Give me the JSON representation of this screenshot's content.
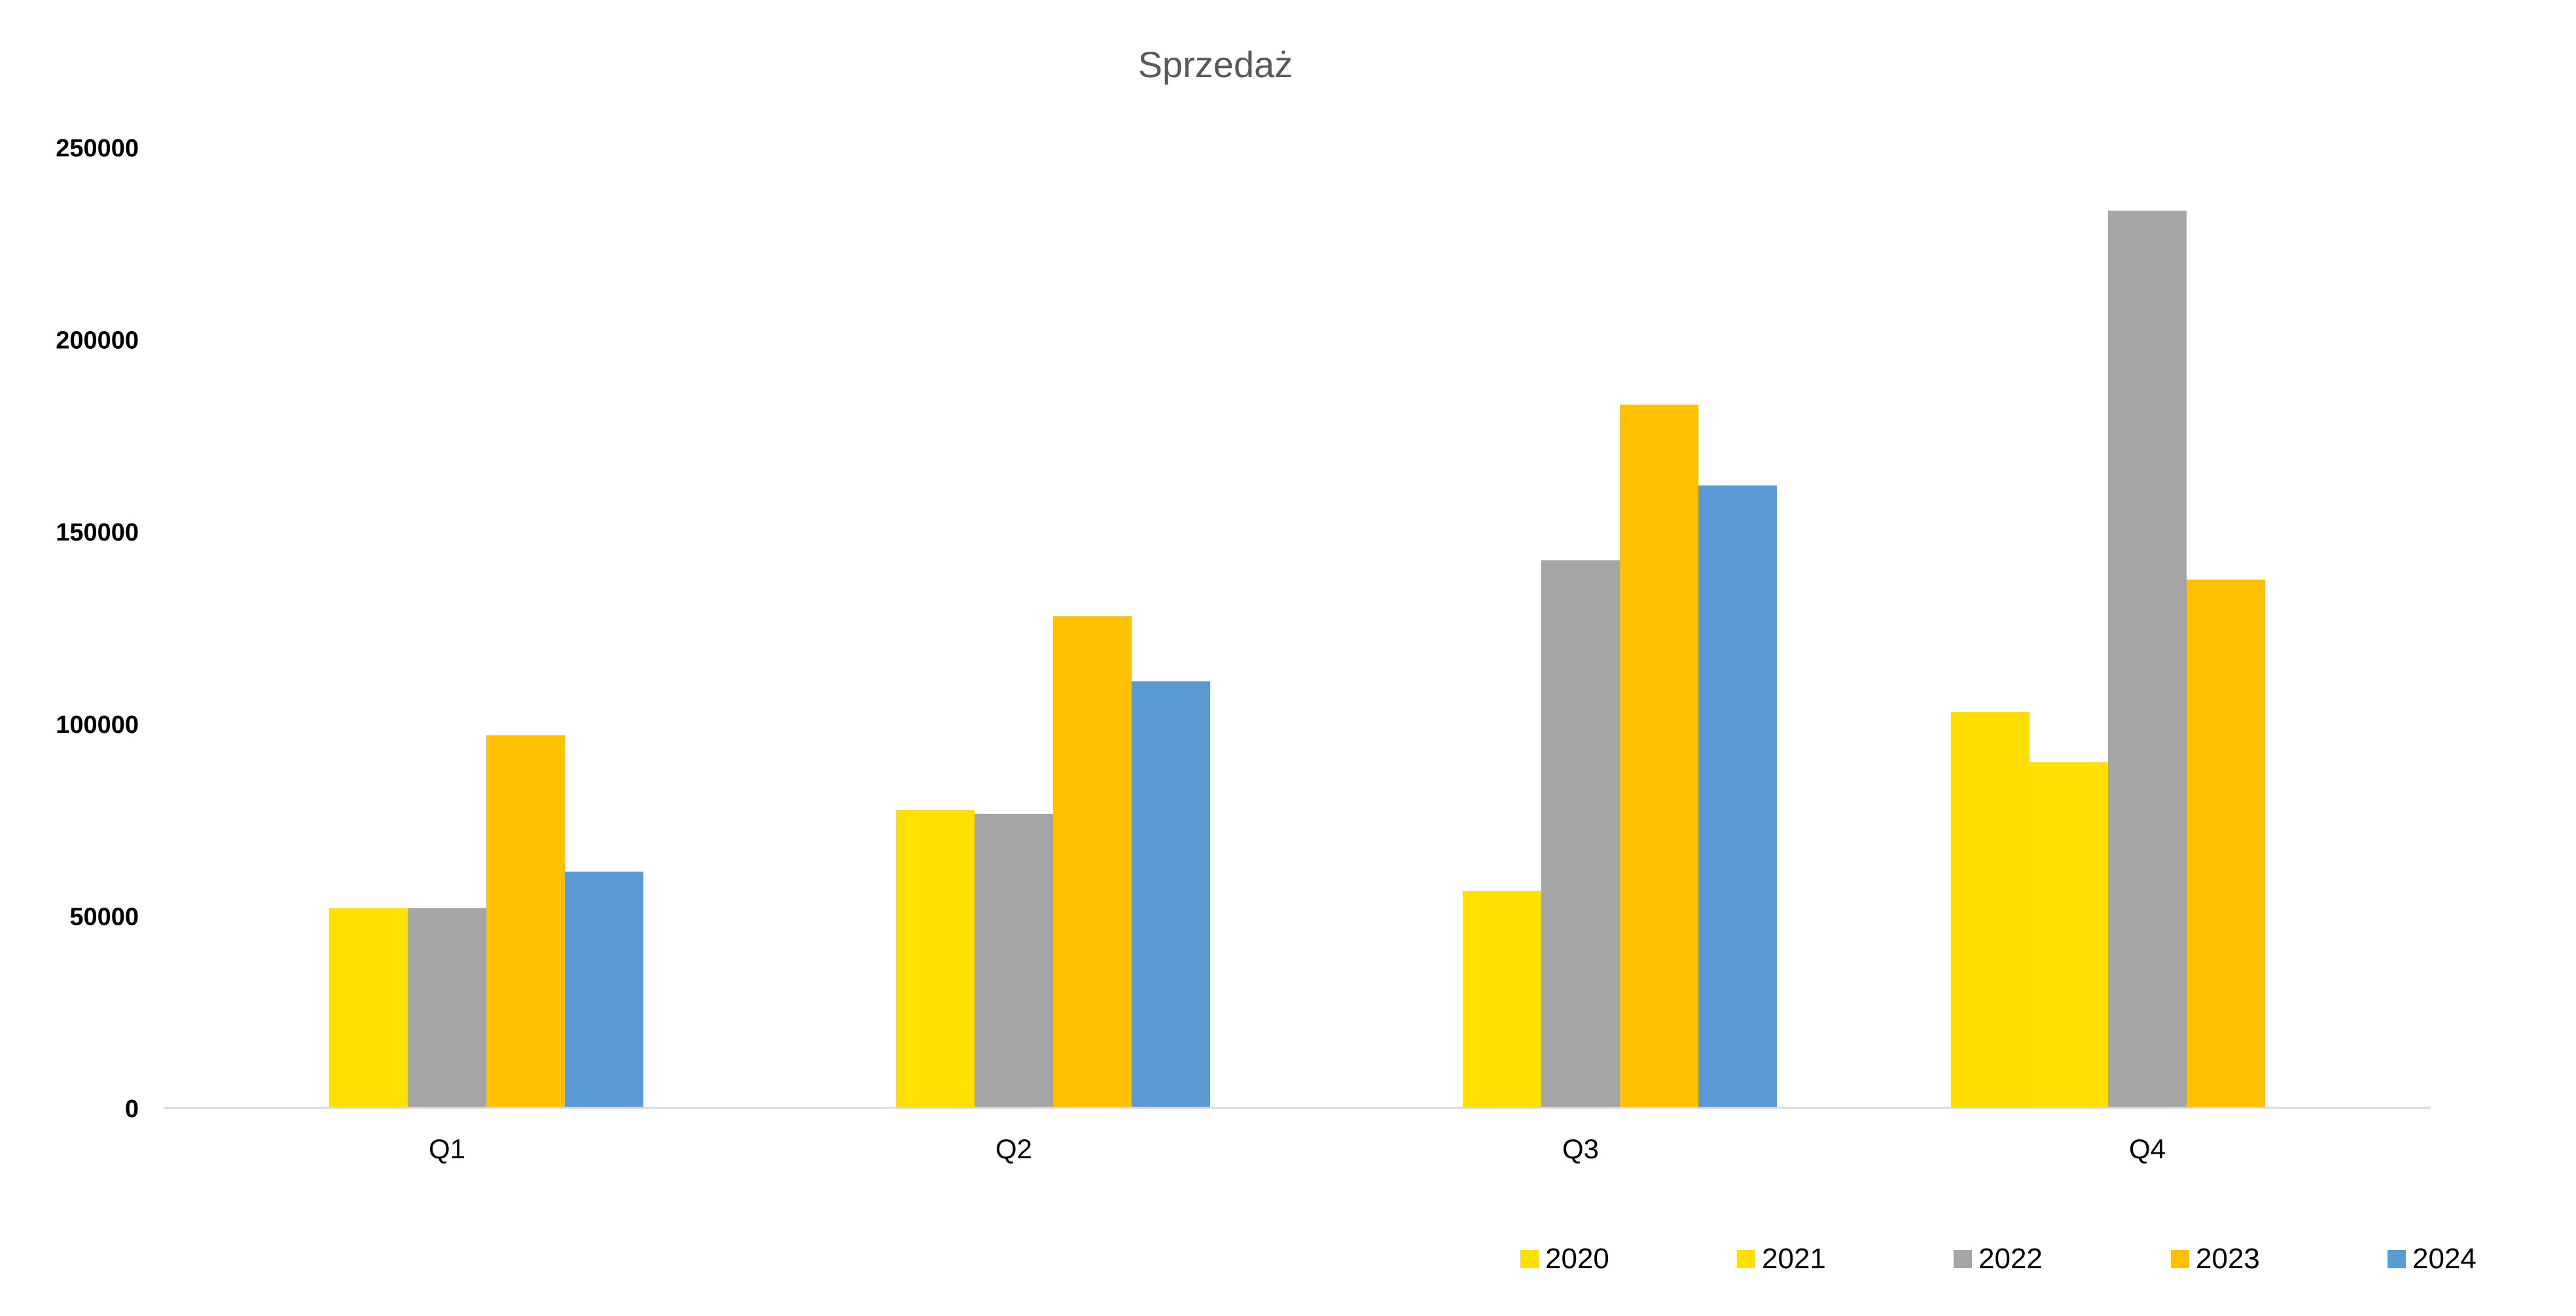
{
  "chart_data": {
    "type": "bar",
    "title": "Sprzedaż",
    "xlabel": "",
    "ylabel": "",
    "categories": [
      "Q1",
      "Q2",
      "Q3",
      "Q4"
    ],
    "series": [
      {
        "name": "2020",
        "color": "#FFDF00",
        "values": [
          0,
          0,
          0,
          103000
        ]
      },
      {
        "name": "2021",
        "color": "#FFE000",
        "values": [
          52000,
          77500,
          56500,
          90000
        ]
      },
      {
        "name": "2022",
        "color": "#A5A5A5",
        "values": [
          52000,
          76500,
          142500,
          233500
        ]
      },
      {
        "name": "2023",
        "color": "#FFC000",
        "values": [
          97000,
          128000,
          183000,
          137500
        ]
      },
      {
        "name": "2024",
        "color": "#5B9BD5",
        "values": [
          61500,
          111000,
          162000,
          0
        ]
      }
    ],
    "ylim": [
      0,
      250000
    ],
    "yticks": [
      "0",
      "50000",
      "100000",
      "150000",
      "200000",
      "250000"
    ],
    "grid": false,
    "legend_position": "bottom-right"
  }
}
